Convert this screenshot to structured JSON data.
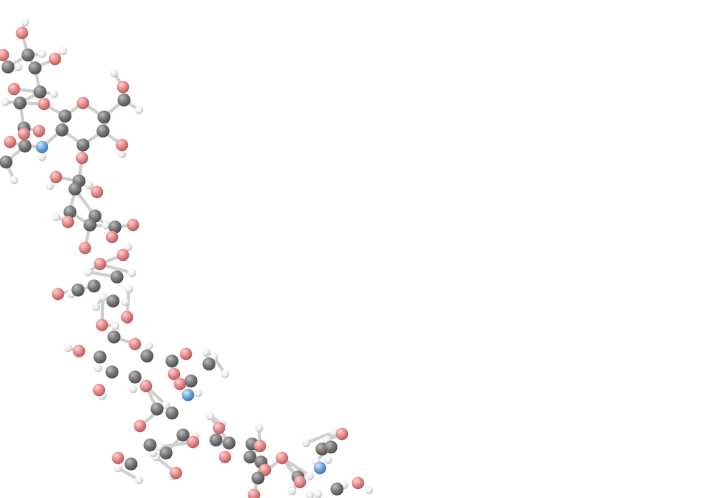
{
  "scene": {
    "type": "ball-and-stick molecular model",
    "background": "#ffffff",
    "colors": {
      "carbon": "#7a7a7a",
      "oxygen": "#e58a8a",
      "nitrogen": "#6fa6e3",
      "hydrogen": "#f2f2f2",
      "bond": "#d0d0d0"
    }
  }
}
